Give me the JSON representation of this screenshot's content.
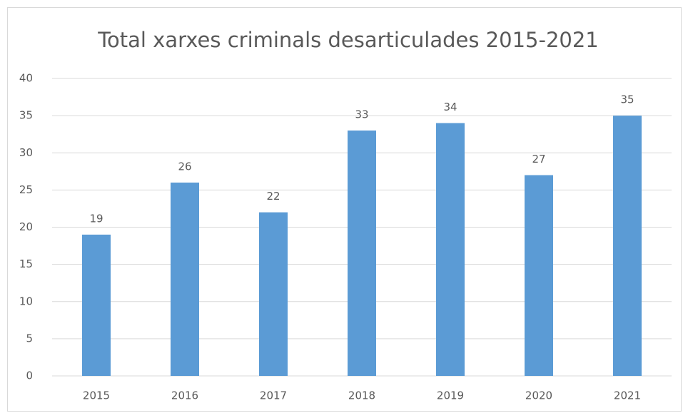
{
  "chart_data": {
    "type": "bar",
    "title": "Total xarxes criminals desarticulades 2015-2021",
    "categories": [
      "2015",
      "2016",
      "2017",
      "2018",
      "2019",
      "2020",
      "2021"
    ],
    "values": [
      19,
      26,
      22,
      33,
      34,
      27,
      35
    ],
    "color": "#5b9bd5",
    "ylim": [
      0,
      40
    ],
    "yticks": [
      0,
      5,
      10,
      15,
      20,
      25,
      30,
      35,
      40
    ],
    "grid": true
  }
}
